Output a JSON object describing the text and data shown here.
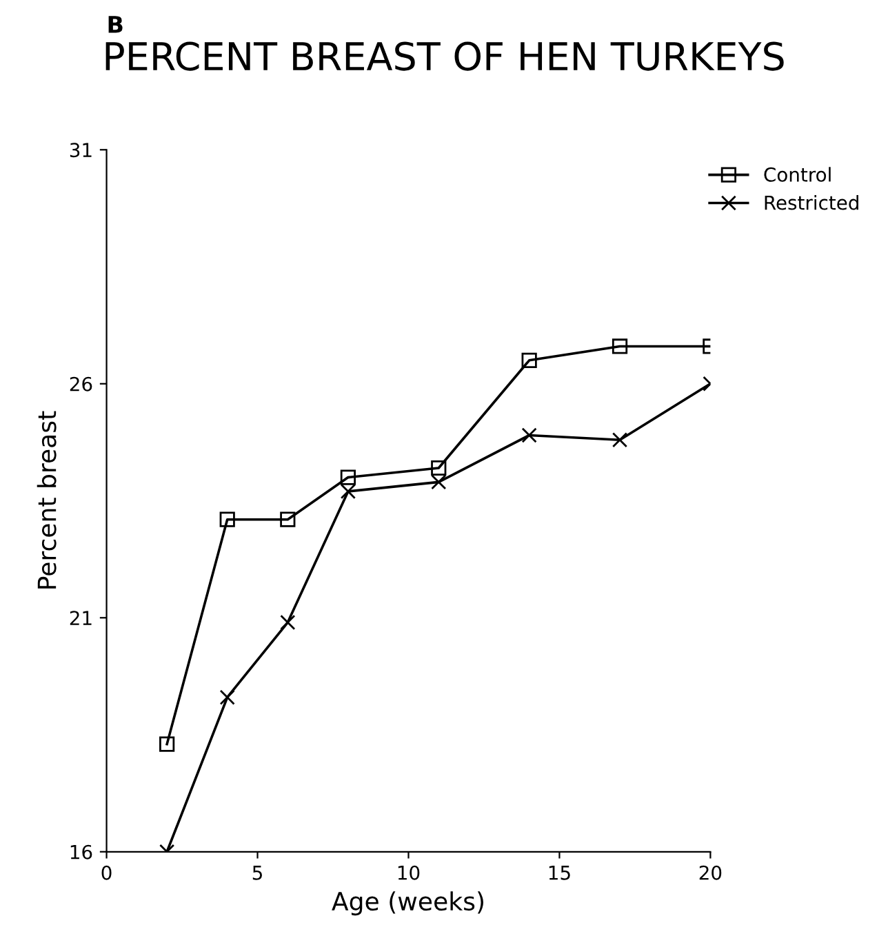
{
  "chart_data": {
    "type": "line",
    "title": "PERCENT BREAST OF HEN TURKEYS",
    "xlabel": "Age (weeks)",
    "ylabel": "Percent breast",
    "annotations": [
      "B"
    ],
    "x": [
      2,
      4,
      6,
      8,
      11,
      14,
      17,
      20
    ],
    "series": [
      {
        "name": "Control",
        "color": "#000000",
        "marker": "square",
        "values": [
          18.3,
          23.1,
          23.1,
          24.0,
          24.2,
          26.5,
          26.8,
          26.8
        ]
      },
      {
        "name": "Restricted",
        "color": "#000000",
        "marker": "cross",
        "values": [
          16.0,
          19.3,
          20.9,
          23.7,
          23.9,
          24.9,
          24.8,
          26.0
        ]
      }
    ],
    "xlim": [
      0,
      20
    ],
    "ylim": [
      16,
      31
    ],
    "xticks": [
      0,
      5,
      10,
      15,
      20
    ],
    "yticks": [
      16,
      21,
      26,
      31
    ],
    "grid": false,
    "legend": "top right",
    "line_style": "solid"
  }
}
